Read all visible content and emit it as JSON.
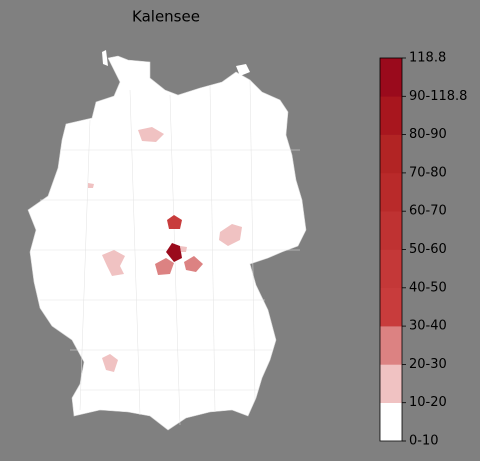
{
  "title": "Kalensee",
  "colorbar": {
    "ticks": [
      "0-10",
      "10-20",
      "20-30",
      "30-40",
      "40-50",
      "50-60",
      "60-70",
      "70-80",
      "80-90",
      "90-118.8",
      "118.8"
    ],
    "colors": [
      "#ffffff",
      "#f0c2c2",
      "#dc8282",
      "#c83c3c",
      "#c43838",
      "#bf3232",
      "#b92a2a",
      "#b22424",
      "#a8161e",
      "#9a0a1c"
    ]
  }
}
